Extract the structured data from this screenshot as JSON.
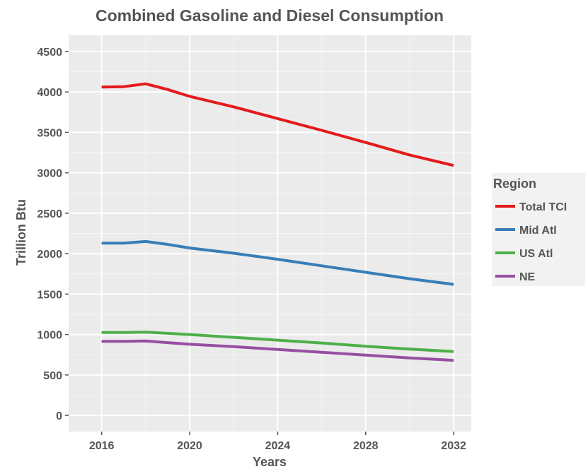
{
  "chart_data": {
    "type": "line",
    "title": "Combined Gasoline and Diesel Consumption",
    "xlabel": "Years",
    "ylabel": "Trillion Btu",
    "xlim": [
      2014.5,
      2032.8
    ],
    "ylim": [
      -200,
      4700
    ],
    "xticks": [
      2016,
      2020,
      2024,
      2028,
      2032
    ],
    "yticks": [
      0,
      500,
      1000,
      1500,
      2000,
      2500,
      3000,
      3500,
      4000,
      4500
    ],
    "grid": true,
    "legend": {
      "title": "Region",
      "placement": "right"
    },
    "x": [
      2016,
      2017,
      2018,
      2019,
      2020,
      2022,
      2024,
      2026,
      2028,
      2030,
      2032
    ],
    "series": [
      {
        "name": "Total TCI",
        "color": "#E41A1C",
        "values": [
          4060,
          4065,
          4100,
          4030,
          3945,
          3815,
          3670,
          3525,
          3375,
          3220,
          3090
        ]
      },
      {
        "name": "Mid Atl",
        "color": "#377EB8",
        "values": [
          2130,
          2130,
          2150,
          2115,
          2070,
          2005,
          1930,
          1850,
          1770,
          1690,
          1620
        ]
      },
      {
        "name": "US Atl",
        "color": "#4DAF4A",
        "values": [
          1025,
          1025,
          1030,
          1015,
          1000,
          965,
          930,
          895,
          855,
          820,
          790
        ]
      },
      {
        "name": "NE",
        "color": "#984EA3",
        "values": [
          915,
          915,
          920,
          900,
          880,
          850,
          815,
          780,
          745,
          710,
          680
        ]
      }
    ]
  }
}
